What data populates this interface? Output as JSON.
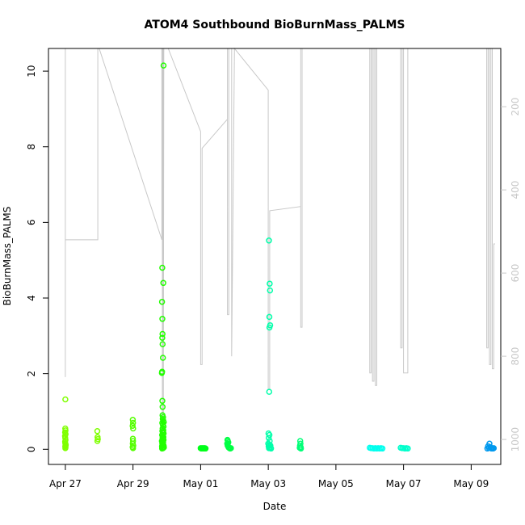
{
  "chart_data": {
    "type": "scatter",
    "title": "ATOM4 Southbound BioBurnMass_PALMS",
    "xlabel": "Date",
    "ylabel": "BioBurnMass_PALMS",
    "x_ticks": [
      "Apr 27",
      "Apr 29",
      "May 01",
      "May 03",
      "May 05",
      "May 07",
      "May 09"
    ],
    "y_ticks": [
      "0",
      "2",
      "4",
      "6",
      "8",
      "10"
    ],
    "y2_ticks": [
      "200",
      "400",
      "600",
      "800",
      "1000"
    ],
    "xlim": [
      "2018-04-26T12:00",
      "2018-05-09T21:00"
    ],
    "ylim": [
      -0.4,
      10.6
    ],
    "y2lim": [
      1060,
      60
    ],
    "colors": {
      "axis": "#000000",
      "altitude_line": "#c8c8c8"
    },
    "series": [
      {
        "color": "#7fff00",
        "points": [
          [
            "2018-04-27T00:00",
            1.32
          ],
          [
            "2018-04-26T23:55",
            0.55
          ],
          [
            "2018-04-27T00:05",
            0.5
          ],
          [
            "2018-04-26T23:50",
            0.45
          ],
          [
            "2018-04-27T00:10",
            0.4
          ],
          [
            "2018-04-26T23:55",
            0.3
          ],
          [
            "2018-04-27T00:05",
            0.25
          ],
          [
            "2018-04-26T23:50",
            0.2
          ],
          [
            "2018-04-27T00:00",
            0.15
          ],
          [
            "2018-04-27T00:10",
            0.1
          ],
          [
            "2018-04-26T23:55",
            0.08
          ],
          [
            "2018-04-27T00:05",
            0.05
          ],
          [
            "2018-04-27T00:00",
            0.03
          ],
          [
            "2018-04-27T00:15",
            0.12
          ],
          [
            "2018-04-26T23:45",
            0.35
          ],
          [
            "2018-04-27T22:40",
            0.48
          ],
          [
            "2018-04-27T22:50",
            0.32
          ],
          [
            "2018-04-27T23:00",
            0.27
          ],
          [
            "2018-04-27T22:45",
            0.22
          ]
        ]
      },
      {
        "color": "#55ff00",
        "points": [
          [
            "2018-04-28T23:50",
            0.78
          ],
          [
            "2018-04-29T00:00",
            0.7
          ],
          [
            "2018-04-28T23:45",
            0.62
          ],
          [
            "2018-04-29T00:05",
            0.55
          ],
          [
            "2018-04-28T23:55",
            0.28
          ],
          [
            "2018-04-29T00:00",
            0.22
          ],
          [
            "2018-04-28T23:50",
            0.15
          ],
          [
            "2018-04-29T00:10",
            0.1
          ],
          [
            "2018-04-28T23:45",
            0.06
          ],
          [
            "2018-04-29T00:00",
            0.03
          ]
        ]
      },
      {
        "color": "#22ff00",
        "points": [
          [
            "2018-04-29T21:40",
            10.15
          ],
          [
            "2018-04-29T20:45",
            4.8
          ],
          [
            "2018-04-29T21:30",
            4.4
          ],
          [
            "2018-04-29T20:35",
            3.9
          ],
          [
            "2018-04-29T20:50",
            3.45
          ],
          [
            "2018-04-29T20:55",
            3.05
          ],
          [
            "2018-04-29T20:45",
            2.95
          ],
          [
            "2018-04-29T21:00",
            2.78
          ],
          [
            "2018-04-29T21:15",
            2.42
          ],
          [
            "2018-04-29T20:30",
            2.02
          ],
          [
            "2018-04-29T20:40",
            2.05
          ],
          [
            "2018-04-29T20:50",
            1.28
          ],
          [
            "2018-04-29T21:00",
            1.12
          ],
          [
            "2018-04-29T20:55",
            0.9
          ],
          [
            "2018-04-29T21:20",
            0.85
          ],
          [
            "2018-04-29T21:05",
            0.8
          ],
          [
            "2018-04-29T21:35",
            0.75
          ],
          [
            "2018-04-29T21:50",
            0.72
          ],
          [
            "2018-04-29T20:45",
            0.7
          ],
          [
            "2018-04-29T21:10",
            0.65
          ],
          [
            "2018-04-29T21:40",
            0.6
          ],
          [
            "2018-04-29T21:00",
            0.55
          ],
          [
            "2018-04-29T21:30",
            0.5
          ],
          [
            "2018-04-29T20:50",
            0.48
          ],
          [
            "2018-04-29T21:20",
            0.45
          ],
          [
            "2018-04-29T21:45",
            0.42
          ],
          [
            "2018-04-29T20:40",
            0.38
          ],
          [
            "2018-04-29T21:05",
            0.35
          ],
          [
            "2018-04-29T21:35",
            0.32
          ],
          [
            "2018-04-29T20:55",
            0.3
          ],
          [
            "2018-04-29T21:15",
            0.28
          ],
          [
            "2018-04-29T21:40",
            0.25
          ],
          [
            "2018-04-29T20:30",
            0.22
          ],
          [
            "2018-04-29T21:00",
            0.2
          ],
          [
            "2018-04-29T21:25",
            0.18
          ],
          [
            "2018-04-29T20:45",
            0.15
          ],
          [
            "2018-04-29T21:10",
            0.12
          ],
          [
            "2018-04-29T21:45",
            0.1
          ],
          [
            "2018-04-29T20:35",
            0.08
          ],
          [
            "2018-04-29T21:30",
            0.06
          ],
          [
            "2018-04-29T20:50",
            0.04
          ],
          [
            "2018-04-29T21:20",
            0.03
          ],
          [
            "2018-04-29T21:55",
            0.05
          ],
          [
            "2018-04-29T20:40",
            0.02
          ]
        ]
      },
      {
        "color": "#00ff1a",
        "points": [
          [
            "2018-05-01T00:00",
            0.03
          ],
          [
            "2018-05-01T00:30",
            0.02
          ],
          [
            "2018-05-01T01:00",
            0.03
          ],
          [
            "2018-05-01T01:30",
            0.02
          ],
          [
            "2018-05-01T02:00",
            0.03
          ],
          [
            "2018-05-01T02:30",
            0.02
          ],
          [
            "2018-05-01T03:00",
            0.03
          ],
          [
            "2018-05-01T03:30",
            0.02
          ]
        ]
      },
      {
        "color": "#00ff44",
        "points": [
          [
            "2018-05-01T19:00",
            0.25
          ],
          [
            "2018-05-01T19:20",
            0.22
          ],
          [
            "2018-05-01T19:40",
            0.18
          ],
          [
            "2018-05-01T18:50",
            0.15
          ],
          [
            "2018-05-01T19:10",
            0.1
          ],
          [
            "2018-05-01T19:30",
            0.08
          ],
          [
            "2018-05-01T19:50",
            0.05
          ],
          [
            "2018-05-01T20:10",
            0.04
          ],
          [
            "2018-05-01T20:30",
            0.03
          ],
          [
            "2018-05-01T21:00",
            0.02
          ],
          [
            "2018-05-01T21:30",
            0.03
          ]
        ]
      },
      {
        "color": "#00ffaa",
        "points": [
          [
            "2018-05-03T00:30",
            5.52
          ],
          [
            "2018-05-03T01:00",
            4.38
          ],
          [
            "2018-05-03T01:15",
            4.2
          ],
          [
            "2018-05-03T00:45",
            3.5
          ],
          [
            "2018-05-03T01:20",
            3.28
          ],
          [
            "2018-05-03T00:50",
            3.22
          ],
          [
            "2018-05-03T00:40",
            1.52
          ],
          [
            "2018-05-03T00:10",
            0.42
          ],
          [
            "2018-05-03T00:50",
            0.38
          ],
          [
            "2018-05-03T00:20",
            0.3
          ],
          [
            "2018-05-03T01:00",
            0.22
          ],
          [
            "2018-05-03T00:00",
            0.15
          ],
          [
            "2018-05-03T00:40",
            0.12
          ],
          [
            "2018-05-03T01:30",
            0.1
          ],
          [
            "2018-05-03T00:15",
            0.08
          ],
          [
            "2018-05-03T00:55",
            0.05
          ],
          [
            "2018-05-03T01:40",
            0.04
          ],
          [
            "2018-05-03T00:30",
            0.03
          ],
          [
            "2018-05-03T02:00",
            0.02
          ]
        ]
      },
      {
        "color": "#00ff77",
        "points": [
          [
            "2018-05-03T22:40",
            0.22
          ],
          [
            "2018-05-03T22:50",
            0.15
          ],
          [
            "2018-05-03T22:30",
            0.1
          ],
          [
            "2018-05-03T23:00",
            0.06
          ],
          [
            "2018-05-03T22:20",
            0.04
          ],
          [
            "2018-05-03T22:55",
            0.03
          ],
          [
            "2018-05-03T23:10",
            0.02
          ]
        ]
      },
      {
        "color": "#00ffee",
        "points": [
          [
            "2018-05-06T00:00",
            0.04
          ],
          [
            "2018-05-06T01:00",
            0.03
          ],
          [
            "2018-05-06T02:00",
            0.03
          ],
          [
            "2018-05-06T03:00",
            0.02
          ],
          [
            "2018-05-06T04:00",
            0.03
          ],
          [
            "2018-05-06T05:00",
            0.02
          ],
          [
            "2018-05-06T06:00",
            0.03
          ],
          [
            "2018-05-06T07:00",
            0.02
          ],
          [
            "2018-05-06T08:00",
            0.03
          ],
          [
            "2018-05-06T09:00",
            0.02
          ]
        ]
      },
      {
        "color": "#00ffcc",
        "points": [
          [
            "2018-05-06T22:00",
            0.04
          ],
          [
            "2018-05-06T23:00",
            0.03
          ],
          [
            "2018-05-07T00:00",
            0.03
          ],
          [
            "2018-05-07T01:00",
            0.02
          ],
          [
            "2018-05-07T02:00",
            0.03
          ],
          [
            "2018-05-07T03:00",
            0.02
          ]
        ]
      },
      {
        "color": "#0099ee",
        "points": [
          [
            "2018-05-09T13:00",
            0.15
          ],
          [
            "2018-05-09T12:00",
            0.08
          ],
          [
            "2018-05-09T13:30",
            0.06
          ],
          [
            "2018-05-09T12:30",
            0.04
          ],
          [
            "2018-05-09T14:00",
            0.03
          ],
          [
            "2018-05-09T14:30",
            0.02
          ],
          [
            "2018-05-09T15:00",
            0.03
          ],
          [
            "2018-05-09T15:30",
            0.02
          ],
          [
            "2018-05-09T16:00",
            0.03
          ],
          [
            "2018-05-09T11:30",
            0.02
          ]
        ]
      }
    ],
    "altitude_trace": [
      [
        "2018-04-27T00:00",
        60
      ],
      [
        "2018-04-27T00:00",
        850
      ],
      [
        "2018-04-27T00:00",
        520
      ],
      [
        "2018-04-27T23:00",
        520
      ],
      [
        "2018-04-27T23:00",
        60
      ],
      [
        "2018-04-28T00:00",
        60
      ],
      [
        "2018-04-29T20:30",
        520
      ],
      [
        "2018-04-29T20:30",
        60
      ],
      [
        "2018-04-29T20:50",
        60
      ],
      [
        "2018-04-29T20:50",
        1000
      ],
      [
        "2018-04-29T21:10",
        60
      ],
      [
        "2018-04-29T21:30",
        60
      ],
      [
        "2018-04-29T21:30",
        1000
      ],
      [
        "2018-04-29T21:50",
        60
      ],
      [
        "2018-04-30T01:00",
        60
      ],
      [
        "2018-05-01T00:00",
        260
      ],
      [
        "2018-05-01T00:00",
        820
      ],
      [
        "2018-05-01T01:00",
        820
      ],
      [
        "2018-05-01T01:00",
        300
      ],
      [
        "2018-05-01T19:00",
        230
      ],
      [
        "2018-05-01T19:00",
        60
      ],
      [
        "2018-05-01T19:00",
        700
      ],
      [
        "2018-05-01T20:00",
        700
      ],
      [
        "2018-05-01T20:00",
        60
      ],
      [
        "2018-05-01T22:00",
        60
      ],
      [
        "2018-05-01T22:00",
        800
      ],
      [
        "2018-05-02T00:00",
        60
      ],
      [
        "2018-05-03T00:00",
        160
      ],
      [
        "2018-05-03T00:00",
        880
      ],
      [
        "2018-05-03T01:00",
        880
      ],
      [
        "2018-05-03T01:00",
        450
      ],
      [
        "2018-05-03T23:00",
        440
      ],
      [
        "2018-05-03T23:00",
        60
      ],
      [
        "2018-05-03T23:00",
        730
      ],
      [
        "2018-05-04T00:00",
        730
      ],
      [
        "2018-05-04T00:00",
        60
      ],
      [
        "2018-05-04T00:30",
        60
      ],
      [
        "2018-05-06T00:00",
        60
      ],
      [
        "2018-05-06T00:00",
        840
      ],
      [
        "2018-05-06T01:00",
        840
      ],
      [
        "2018-05-06T01:00",
        60
      ],
      [
        "2018-05-06T02:00",
        60
      ],
      [
        "2018-05-06T02:00",
        860
      ],
      [
        "2018-05-06T03:00",
        860
      ],
      [
        "2018-05-06T03:00",
        60
      ],
      [
        "2018-05-06T04:00",
        60
      ],
      [
        "2018-05-06T04:00",
        870
      ],
      [
        "2018-05-06T05:00",
        870
      ],
      [
        "2018-05-06T05:00",
        60
      ],
      [
        "2018-05-06T22:00",
        60
      ],
      [
        "2018-05-06T22:00",
        780
      ],
      [
        "2018-05-06T23:00",
        780
      ],
      [
        "2018-05-06T23:00",
        60
      ],
      [
        "2018-05-07T00:00",
        60
      ],
      [
        "2018-05-07T00:00",
        840
      ],
      [
        "2018-05-07T03:00",
        840
      ],
      [
        "2018-05-07T03:00",
        60
      ],
      [
        "2018-05-09T11:00",
        60
      ],
      [
        "2018-05-09T11:00",
        780
      ],
      [
        "2018-05-09T12:00",
        780
      ],
      [
        "2018-05-09T12:00",
        60
      ],
      [
        "2018-05-09T13:00",
        60
      ],
      [
        "2018-05-09T13:00",
        820
      ],
      [
        "2018-05-09T14:00",
        820
      ],
      [
        "2018-05-09T14:00",
        60
      ],
      [
        "2018-05-09T15:00",
        60
      ],
      [
        "2018-05-09T15:00",
        830
      ],
      [
        "2018-05-09T16:00",
        830
      ],
      [
        "2018-05-09T16:00",
        530
      ],
      [
        "2018-05-09T17:00",
        530
      ]
    ]
  }
}
